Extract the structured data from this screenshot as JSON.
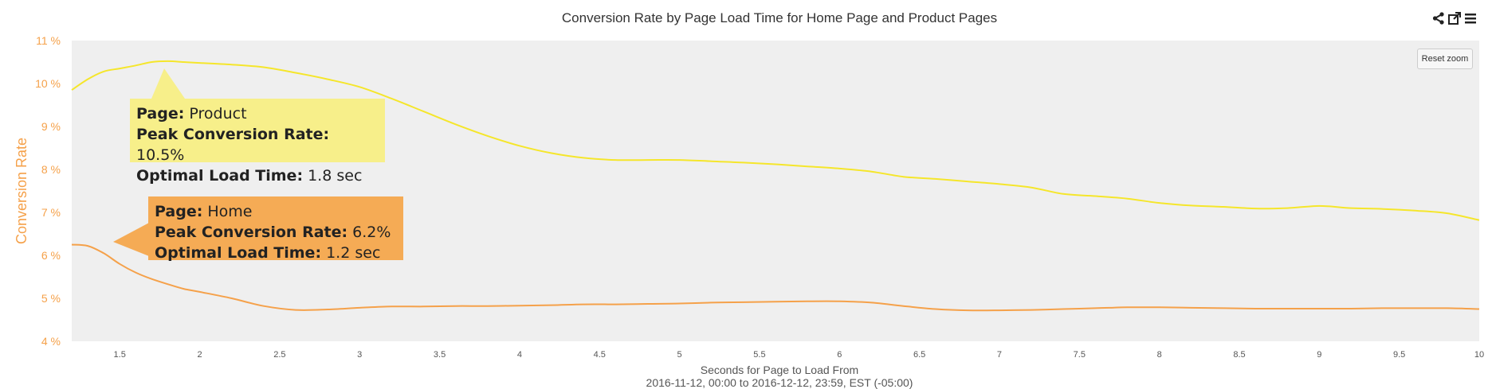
{
  "toolbar": {
    "share_icon": "share-icon",
    "export_icon": "open-external-icon",
    "menu_icon": "hamburger-menu-icon",
    "reset_zoom_label": "Reset zoom"
  },
  "chart_data": {
    "type": "line",
    "title": "Conversion Rate by Page Load Time for Home Page and Product Pages",
    "xlabel": "Seconds for Page to Load From",
    "xlabel_sub": "2016-11-12, 00:00 to 2016-12-12, 23:59, EST (-05:00)",
    "ylabel": "Conversion Rate",
    "xlim": [
      1.2,
      10
    ],
    "ylim": [
      4,
      11
    ],
    "x_ticks": [
      "1.5",
      "2",
      "2.5",
      "3",
      "3.5",
      "4",
      "4.5",
      "5",
      "5.5",
      "6",
      "6.5",
      "7",
      "7.5",
      "8",
      "8.5",
      "9",
      "9.5",
      "10"
    ],
    "y_ticks": [
      "4 %",
      "5 %",
      "6 %",
      "7 %",
      "8 %",
      "9 %",
      "10 %",
      "11 %"
    ],
    "grid": false,
    "legend": "none",
    "series": [
      {
        "color": "#f5e62b",
        "x": [
          1.2,
          1.3,
          1.4,
          1.5,
          1.6,
          1.7,
          1.8,
          1.9,
          2.0,
          2.2,
          2.4,
          2.6,
          2.8,
          3.0,
          3.2,
          3.4,
          3.6,
          3.8,
          4.0,
          4.2,
          4.4,
          4.6,
          4.8,
          5.0,
          5.2,
          5.4,
          5.6,
          5.8,
          6.0,
          6.2,
          6.4,
          6.6,
          6.8,
          7.0,
          7.2,
          7.4,
          7.6,
          7.8,
          8.0,
          8.2,
          8.4,
          8.6,
          8.8,
          9.0,
          9.2,
          9.4,
          9.6,
          9.8,
          10.0
        ],
        "values": [
          9.85,
          10.1,
          10.28,
          10.35,
          10.42,
          10.5,
          10.52,
          10.5,
          10.48,
          10.44,
          10.38,
          10.25,
          10.1,
          9.92,
          9.65,
          9.35,
          9.05,
          8.78,
          8.55,
          8.38,
          8.27,
          8.22,
          8.22,
          8.22,
          8.19,
          8.16,
          8.12,
          8.07,
          8.02,
          7.95,
          7.83,
          7.78,
          7.72,
          7.66,
          7.58,
          7.43,
          7.38,
          7.32,
          7.22,
          7.16,
          7.13,
          7.09,
          7.1,
          7.15,
          7.1,
          7.08,
          7.04,
          6.98,
          6.82
        ]
      },
      {
        "color": "#f5a14a",
        "x": [
          1.2,
          1.3,
          1.4,
          1.5,
          1.6,
          1.7,
          1.8,
          1.9,
          2.0,
          2.2,
          2.4,
          2.6,
          2.8,
          3.0,
          3.2,
          3.4,
          3.6,
          3.8,
          4.0,
          4.2,
          4.4,
          4.6,
          4.8,
          5.0,
          5.2,
          5.4,
          5.6,
          5.8,
          6.0,
          6.2,
          6.4,
          6.6,
          6.8,
          7.0,
          7.2,
          7.4,
          7.6,
          7.8,
          8.0,
          8.2,
          8.4,
          8.6,
          8.8,
          9.0,
          9.2,
          9.4,
          9.6,
          9.8,
          10.0
        ],
        "values": [
          6.25,
          6.22,
          6.05,
          5.8,
          5.6,
          5.45,
          5.33,
          5.22,
          5.15,
          5.0,
          4.82,
          4.73,
          4.74,
          4.78,
          4.81,
          4.81,
          4.82,
          4.82,
          4.83,
          4.84,
          4.86,
          4.86,
          4.87,
          4.88,
          4.9,
          4.91,
          4.92,
          4.93,
          4.93,
          4.9,
          4.82,
          4.75,
          4.72,
          4.72,
          4.73,
          4.75,
          4.77,
          4.79,
          4.79,
          4.78,
          4.77,
          4.76,
          4.76,
          4.76,
          4.76,
          4.77,
          4.77,
          4.77,
          4.75
        ]
      }
    ],
    "annotations": [
      {
        "page_key": "Page:",
        "page_value": "Product",
        "peak_key": "Peak Conversion Rate:",
        "peak_value": "10.5%",
        "optimal_key": "Optimal Load Time:",
        "optimal_value": "1.8 sec",
        "color": "#f7ef8a"
      },
      {
        "page_key": "Page:",
        "page_value": "Home",
        "peak_key": "Peak Conversion Rate:",
        "peak_value": "6.2%",
        "optimal_key": "Optimal Load Time:",
        "optimal_value": "1.2 sec",
        "color": "#f5ab55"
      }
    ]
  }
}
